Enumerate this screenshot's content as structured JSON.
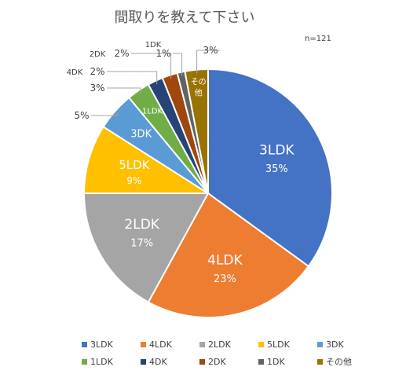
{
  "chart_data": {
    "type": "pie",
    "title": "間取りを教えて下さい",
    "note": "n=121",
    "categories": [
      "3LDK",
      "4LDK",
      "2LDK",
      "5LDK",
      "3DK",
      "1LDK",
      "4DK",
      "2DK",
      "1DK",
      "その他"
    ],
    "values": [
      35,
      23,
      17,
      9,
      5,
      3,
      2,
      2,
      1,
      3
    ],
    "value_labels": [
      "35%",
      "23%",
      "17%",
      "9%",
      "5%",
      "3%",
      "2%",
      "2%",
      "1%",
      "3%"
    ],
    "colors": [
      "#4472C4",
      "#ED7D31",
      "#A5A5A5",
      "#FFC000",
      "#5B9BD5",
      "#70AD47",
      "#264478",
      "#9E480E",
      "#636363",
      "#997300"
    ],
    "start_angle_deg": 0,
    "direction": "clockwise",
    "legend_position": "bottom",
    "grid": false
  }
}
